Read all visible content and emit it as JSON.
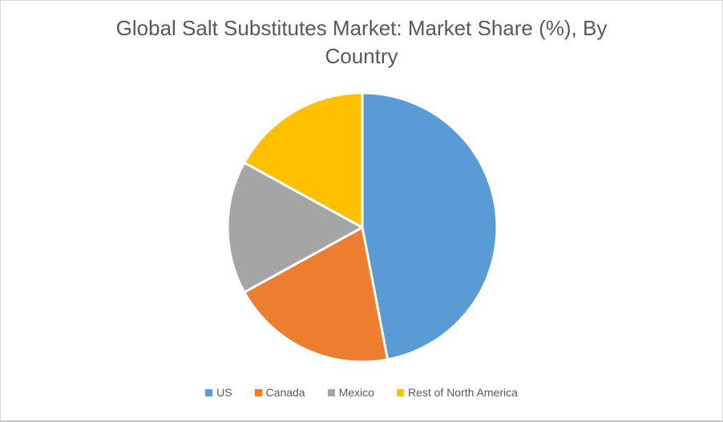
{
  "window": {
    "background_color": "#FFFFFF",
    "border_color": "#D6D6D6"
  },
  "chart_data": {
    "type": "pie",
    "title": "Global Salt Substitutes Market: Market Share (%), By Country",
    "title_lines": [
      "Global Salt Substitutes Market: Market Share (%), By",
      "Country"
    ],
    "categories": [
      "US",
      "Canada",
      "Mexico",
      "Rest of North America"
    ],
    "values": [
      47,
      20,
      16,
      17
    ],
    "unit": "%",
    "colors": [
      "#5B9BD5",
      "#ED7D31",
      "#A5A5A5",
      "#FFC000"
    ],
    "start_angle_deg": 0,
    "direction": "clockwise",
    "slice_border_color": "#FFFFFF",
    "legend_position": "bottom",
    "title_color": "#595959",
    "legend_text_color": "#595959"
  }
}
